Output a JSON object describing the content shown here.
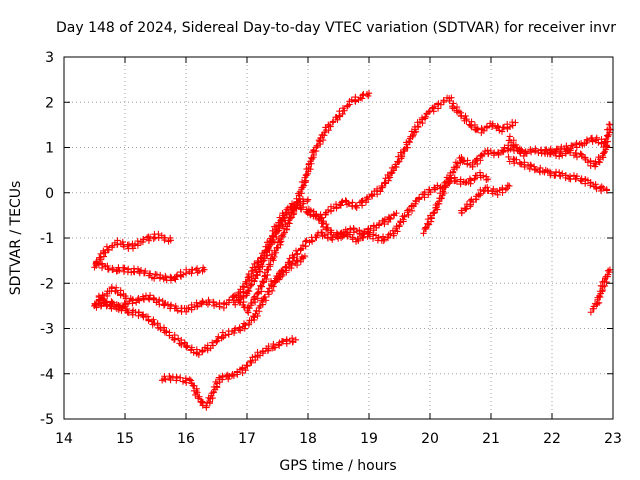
{
  "chart_data": {
    "type": "scatter",
    "title": "Day 148 of 2024, Sidereal Day-to-day VTEC variation (SDTVAR) for receiver invr",
    "xlabel": "GPS time / hours",
    "ylabel": "SDTVAR / TECUs",
    "xlim": [
      14,
      23
    ],
    "ylim": [
      -5,
      3
    ],
    "xticks": [
      "14",
      "15",
      "16",
      "17",
      "18",
      "19",
      "20",
      "21",
      "22",
      "23"
    ],
    "yticks": [
      "-5",
      "-4",
      "-3",
      "-2",
      "-1",
      "0",
      "1",
      "2",
      "3"
    ],
    "grid": true,
    "marker": "+",
    "color": "#ff0000",
    "series": [
      {
        "points": [
          [
            14.5,
            -1.6
          ],
          [
            14.7,
            -1.25
          ],
          [
            14.9,
            -1.1
          ],
          [
            15.1,
            -1.2
          ],
          [
            15.3,
            -1.05
          ],
          [
            15.5,
            -0.95
          ],
          [
            15.75,
            -1.05
          ]
        ]
      },
      {
        "points": [
          [
            14.5,
            -1.55
          ],
          [
            14.8,
            -1.7
          ],
          [
            15.0,
            -1.7
          ],
          [
            15.3,
            -1.75
          ],
          [
            15.5,
            -1.85
          ],
          [
            15.8,
            -1.9
          ],
          [
            16.0,
            -1.75
          ],
          [
            16.3,
            -1.7
          ]
        ]
      },
      {
        "points": [
          [
            14.5,
            -2.5
          ],
          [
            14.8,
            -2.45
          ],
          [
            15.0,
            -2.6
          ],
          [
            15.3,
            -2.7
          ],
          [
            15.6,
            -3.0
          ],
          [
            15.9,
            -3.3
          ],
          [
            16.2,
            -3.55
          ],
          [
            16.4,
            -3.4
          ],
          [
            16.6,
            -3.15
          ],
          [
            16.9,
            -3.0
          ],
          [
            17.1,
            -2.8
          ],
          [
            17.3,
            -2.3
          ],
          [
            17.6,
            -1.7
          ],
          [
            17.8,
            -1.35
          ],
          [
            18.0,
            -1.1
          ],
          [
            18.2,
            -0.9
          ],
          [
            18.4,
            -1.0
          ],
          [
            18.6,
            -0.9
          ],
          [
            18.8,
            -1.05
          ],
          [
            19.0,
            -0.9
          ],
          [
            19.2,
            -1.05
          ],
          [
            19.4,
            -0.9
          ],
          [
            19.6,
            -0.5
          ],
          [
            19.8,
            -0.15
          ],
          [
            20.0,
            0.05
          ],
          [
            20.2,
            0.15
          ],
          [
            20.4,
            0.3
          ],
          [
            20.6,
            0.2
          ],
          [
            20.8,
            0.4
          ],
          [
            20.95,
            0.3
          ]
        ]
      },
      {
        "points": [
          [
            14.5,
            -2.5
          ],
          [
            14.8,
            -2.1
          ],
          [
            15.1,
            -2.4
          ],
          [
            15.4,
            -2.3
          ],
          [
            15.7,
            -2.5
          ],
          [
            16.0,
            -2.6
          ],
          [
            16.3,
            -2.4
          ],
          [
            16.6,
            -2.5
          ],
          [
            16.9,
            -2.2
          ],
          [
            17.1,
            -1.7
          ],
          [
            17.3,
            -1.3
          ],
          [
            17.5,
            -0.7
          ],
          [
            17.7,
            -0.3
          ],
          [
            18.0,
            -0.15
          ]
        ]
      },
      {
        "points": [
          [
            16.8,
            -2.45
          ],
          [
            17.0,
            -2.2
          ],
          [
            17.2,
            -1.7
          ],
          [
            17.4,
            -1.1
          ],
          [
            17.6,
            -0.6
          ],
          [
            17.8,
            -0.3
          ],
          [
            18.0,
            -0.4
          ],
          [
            18.2,
            -0.55
          ],
          [
            18.4,
            -0.35
          ],
          [
            18.6,
            -0.2
          ],
          [
            18.8,
            -0.3
          ],
          [
            19.0,
            -0.1
          ],
          [
            19.2,
            0.1
          ],
          [
            19.4,
            0.5
          ],
          [
            19.6,
            1.0
          ],
          [
            19.8,
            1.5
          ],
          [
            20.0,
            1.8
          ],
          [
            20.2,
            2.0
          ],
          [
            20.35,
            2.1
          ]
        ]
      },
      {
        "points": [
          [
            16.85,
            -2.3
          ],
          [
            17.0,
            -2.6
          ],
          [
            17.2,
            -2.2
          ],
          [
            17.4,
            -1.5
          ],
          [
            17.6,
            -0.9
          ],
          [
            17.8,
            -0.3
          ],
          [
            17.95,
            0.3
          ],
          [
            18.1,
            0.9
          ],
          [
            18.3,
            1.4
          ],
          [
            18.5,
            1.7
          ],
          [
            18.7,
            2.0
          ],
          [
            18.85,
            2.1
          ],
          [
            19.0,
            2.2
          ]
        ]
      },
      {
        "points": [
          [
            19.9,
            -0.85
          ],
          [
            20.1,
            -0.35
          ],
          [
            20.3,
            0.3
          ],
          [
            20.5,
            0.75
          ],
          [
            20.7,
            0.6
          ],
          [
            20.9,
            0.9
          ],
          [
            21.1,
            0.85
          ],
          [
            21.3,
            1.0
          ],
          [
            21.5,
            0.95
          ]
        ]
      },
      {
        "points": [
          [
            20.35,
            1.95
          ],
          [
            20.6,
            1.6
          ],
          [
            20.8,
            1.35
          ],
          [
            21.0,
            1.5
          ],
          [
            21.2,
            1.4
          ],
          [
            21.4,
            1.55
          ]
        ]
      },
      {
        "points": [
          [
            20.5,
            -0.45
          ],
          [
            20.7,
            -0.2
          ],
          [
            20.9,
            0.1
          ],
          [
            21.1,
            0.0
          ],
          [
            21.3,
            0.15
          ]
        ]
      },
      {
        "points": [
          [
            21.3,
            1.2
          ],
          [
            21.5,
            0.85
          ],
          [
            21.7,
            0.95
          ],
          [
            21.9,
            0.9
          ],
          [
            22.1,
            0.95
          ],
          [
            22.3,
            1.0
          ],
          [
            22.5,
            1.1
          ],
          [
            22.7,
            1.2
          ],
          [
            22.9,
            1.05
          ]
        ]
      },
      {
        "points": [
          [
            21.3,
            0.75
          ],
          [
            21.5,
            0.65
          ],
          [
            21.7,
            0.55
          ],
          [
            21.9,
            0.45
          ],
          [
            22.1,
            0.4
          ],
          [
            22.3,
            0.35
          ],
          [
            22.5,
            0.3
          ],
          [
            22.7,
            0.15
          ],
          [
            22.9,
            0.05
          ]
        ]
      },
      {
        "points": [
          [
            21.9,
            0.9
          ],
          [
            22.1,
            0.85
          ],
          [
            22.3,
            0.9
          ],
          [
            22.5,
            0.8
          ],
          [
            22.7,
            0.6
          ],
          [
            22.85,
            0.85
          ],
          [
            22.95,
            1.5
          ]
        ]
      },
      {
        "points": [
          [
            22.65,
            -2.6
          ],
          [
            22.75,
            -2.4
          ],
          [
            22.85,
            -2.0
          ],
          [
            22.95,
            -1.7
          ]
        ]
      },
      {
        "points": [
          [
            15.6,
            -4.1
          ],
          [
            15.9,
            -4.1
          ],
          [
            16.1,
            -4.2
          ],
          [
            16.25,
            -4.65
          ],
          [
            16.35,
            -4.7
          ],
          [
            16.55,
            -4.1
          ],
          [
            16.75,
            -4.05
          ],
          [
            16.95,
            -3.9
          ],
          [
            17.15,
            -3.6
          ],
          [
            17.35,
            -3.45
          ],
          [
            17.6,
            -3.3
          ],
          [
            17.8,
            -3.25
          ]
        ]
      },
      {
        "points": [
          [
            14.55,
            -2.3
          ],
          [
            14.7,
            -2.45
          ],
          [
            14.85,
            -2.55
          ],
          [
            15.05,
            -2.45
          ]
        ]
      },
      {
        "points": [
          [
            18.0,
            -0.4
          ],
          [
            18.2,
            -0.6
          ],
          [
            18.35,
            -0.85
          ],
          [
            18.55,
            -0.95
          ],
          [
            18.7,
            -0.8
          ],
          [
            18.9,
            -0.9
          ],
          [
            19.1,
            -0.75
          ],
          [
            19.3,
            -0.6
          ],
          [
            19.45,
            -0.45
          ]
        ]
      },
      {
        "points": [
          [
            17.4,
            -2.0
          ],
          [
            17.6,
            -1.75
          ],
          [
            17.8,
            -1.55
          ],
          [
            17.95,
            -1.4
          ]
        ]
      }
    ]
  }
}
